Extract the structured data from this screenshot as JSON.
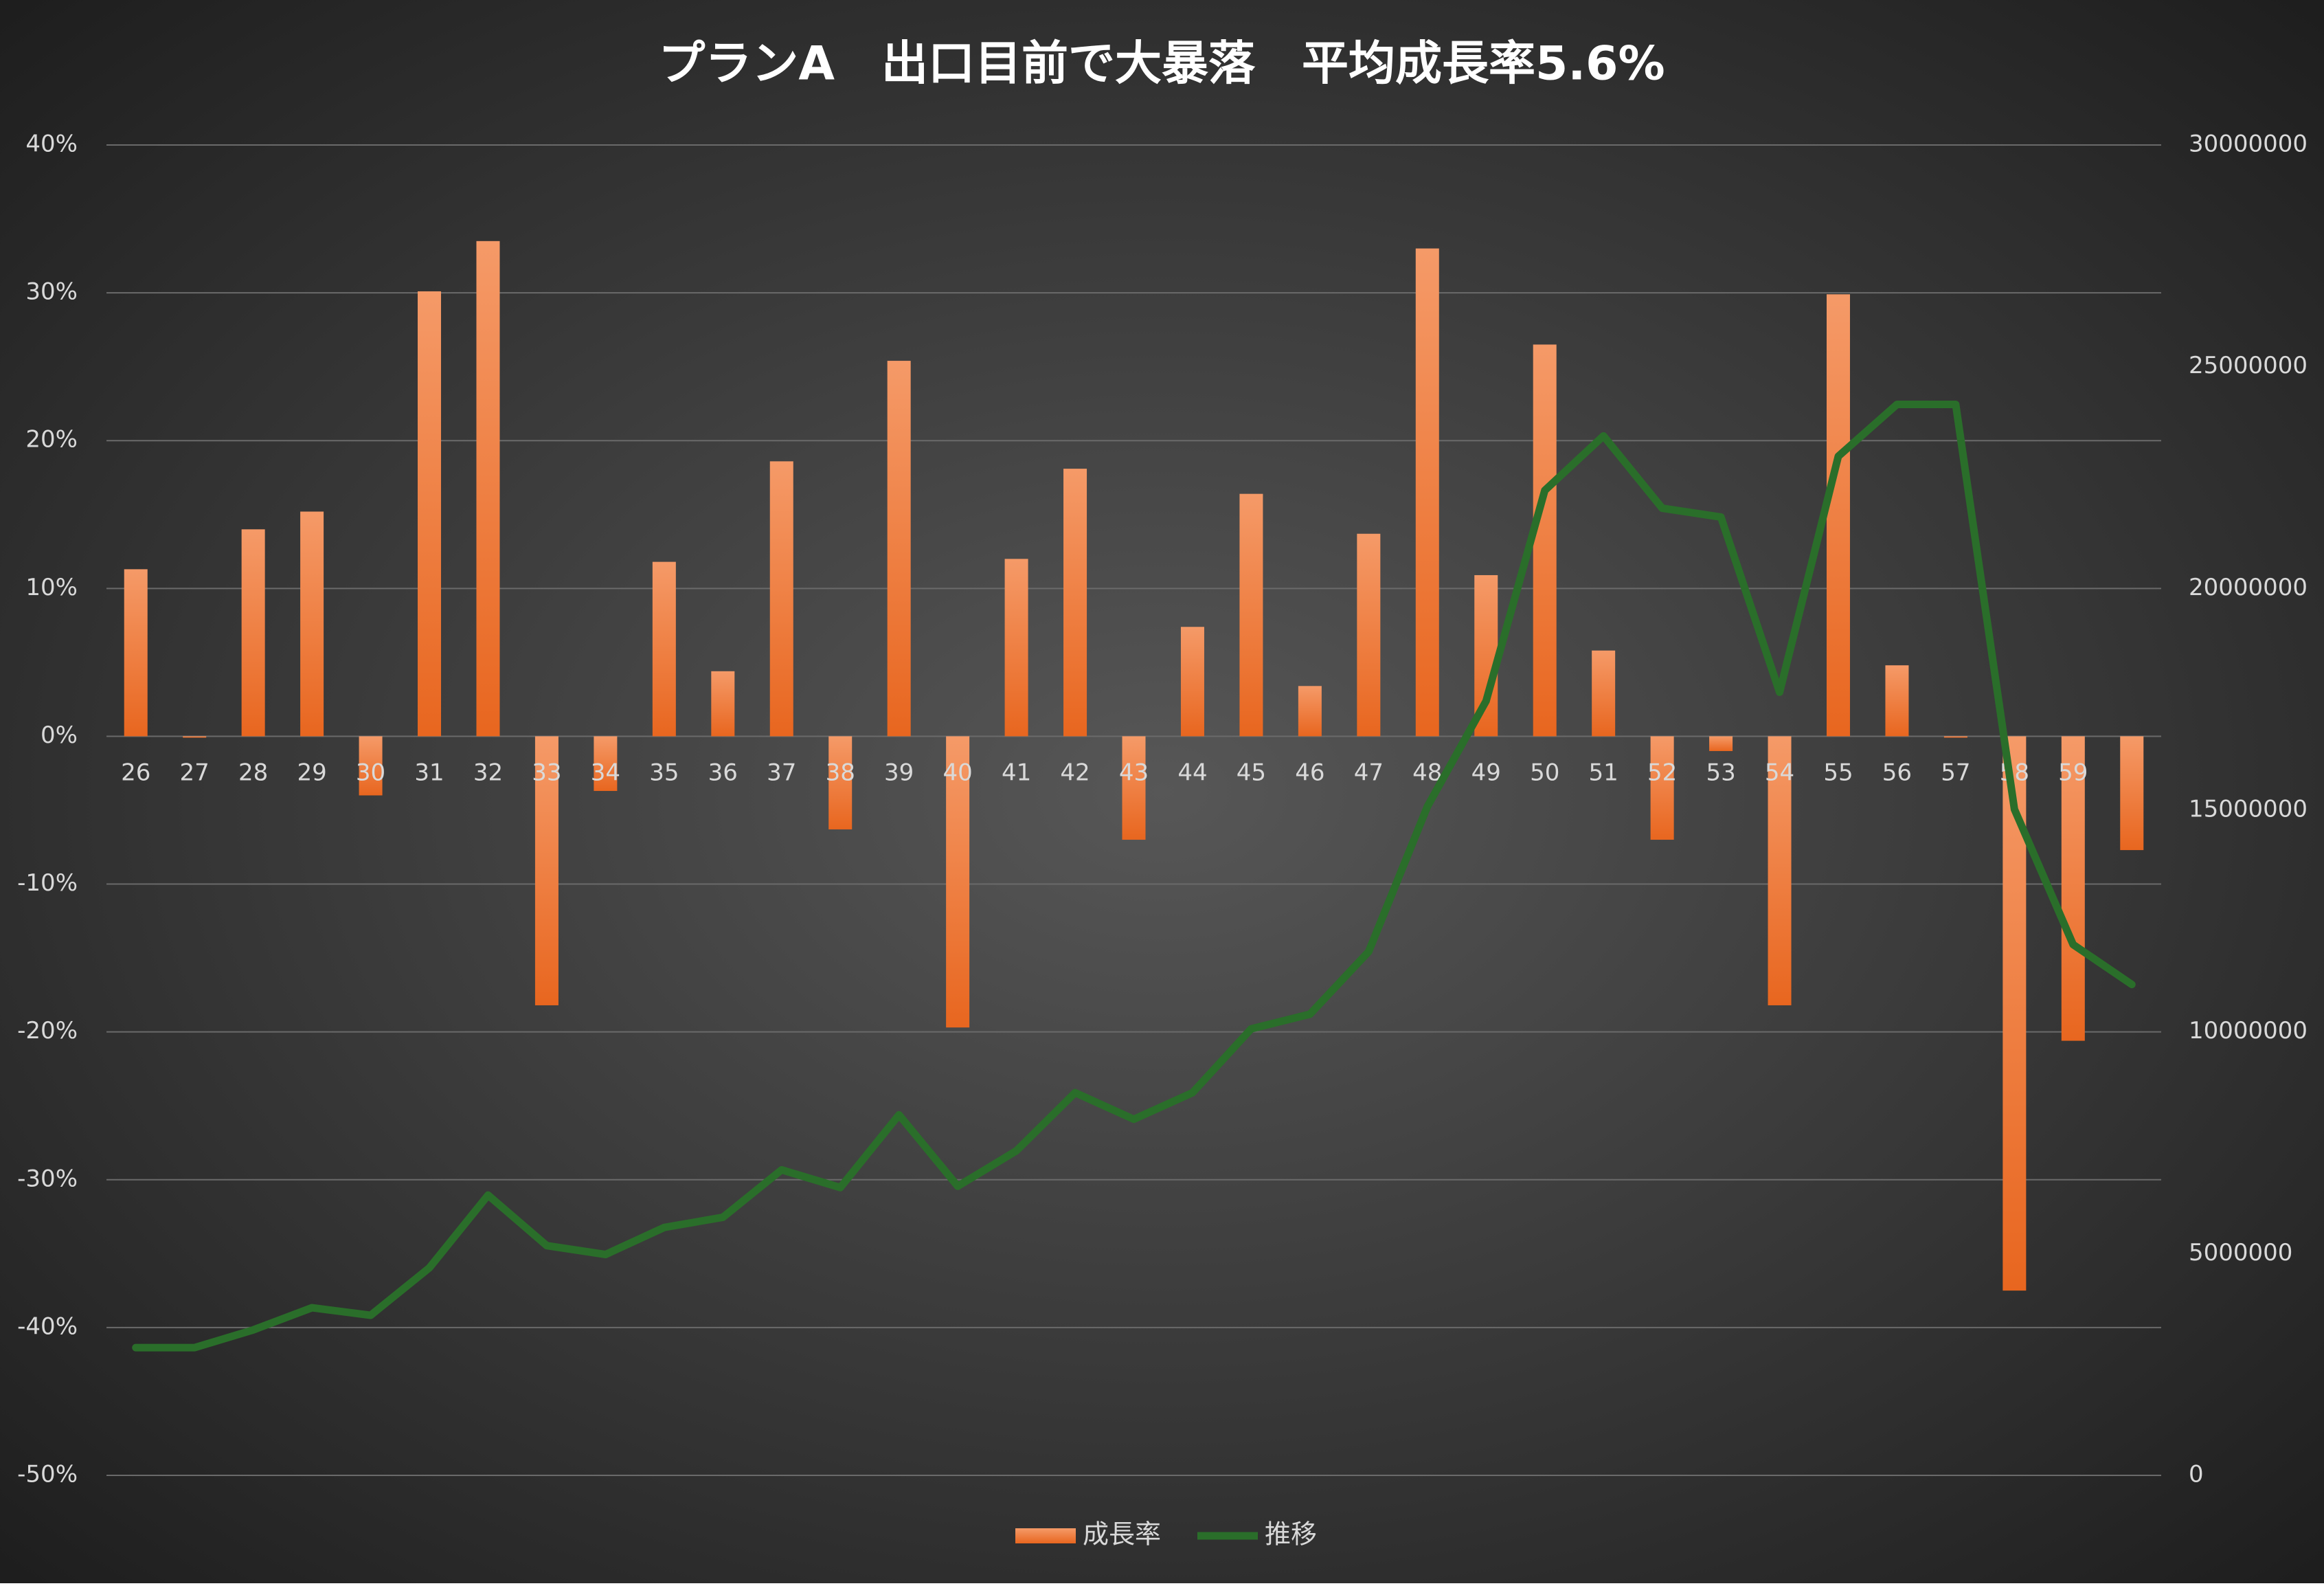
{
  "chart_data": {
    "type": "bar_line",
    "title": "プランA　出口目前で大暴落　平均成長率5.6%",
    "categories": [
      "26",
      "27",
      "28",
      "29",
      "30",
      "31",
      "32",
      "33",
      "34",
      "35",
      "36",
      "37",
      "38",
      "39",
      "40",
      "41",
      "42",
      "43",
      "44",
      "45",
      "46",
      "47",
      "48",
      "49",
      "50",
      "51",
      "52",
      "53",
      "54",
      "55",
      "56",
      "57",
      "58",
      "59",
      null
    ],
    "series": [
      {
        "name": "成長率",
        "type": "bar",
        "color": "#ed7d31",
        "axis": "y",
        "values": [
          11.3,
          0,
          14,
          15.2,
          -4,
          30.1,
          33.5,
          -18.2,
          -3.7,
          11.8,
          4.4,
          18.6,
          -6.3,
          25.4,
          -19.7,
          12,
          18.1,
          -7,
          7.4,
          16.4,
          3.4,
          13.7,
          33,
          10.9,
          26.5,
          5.8,
          -7,
          -1,
          -18.2,
          29.9,
          4.8,
          0,
          -37.5,
          -20.6,
          -7.7
        ]
      },
      {
        "name": "推移",
        "type": "line",
        "color": "#2a6e2a",
        "axis": "y2",
        "values": [
          2880000,
          2880000,
          3280000,
          3780000,
          3610000,
          4680000,
          6320000,
          5180000,
          4980000,
          5590000,
          5820000,
          6890000,
          6490000,
          8130000,
          6520000,
          7320000,
          8630000,
          8030000,
          8630000,
          10070000,
          10400000,
          11810000,
          15080000,
          17460000,
          22210000,
          23440000,
          21810000,
          21610000,
          17660000,
          22980000,
          24150000,
          24150000,
          15020000,
          11970000,
          11070000
        ]
      }
    ],
    "ylim": [
      -50,
      40
    ],
    "yticks": [
      {
        "value": -50,
        "label": "-50%"
      },
      {
        "value": -40,
        "label": "-40%"
      },
      {
        "value": -30,
        "label": "-30%"
      },
      {
        "value": -20,
        "label": "-20%"
      },
      {
        "value": -10,
        "label": "-10%"
      },
      {
        "value": 0,
        "label": "0%"
      },
      {
        "value": 10,
        "label": "10%"
      },
      {
        "value": 20,
        "label": "20%"
      },
      {
        "value": 30,
        "label": "30%"
      },
      {
        "value": 40,
        "label": "40%"
      }
    ],
    "y2lim": [
      0,
      30000000
    ],
    "y2ticks": [
      0,
      5000000,
      10000000,
      15000000,
      20000000,
      25000000,
      30000000
    ],
    "grid": true,
    "legend": "bottom"
  }
}
